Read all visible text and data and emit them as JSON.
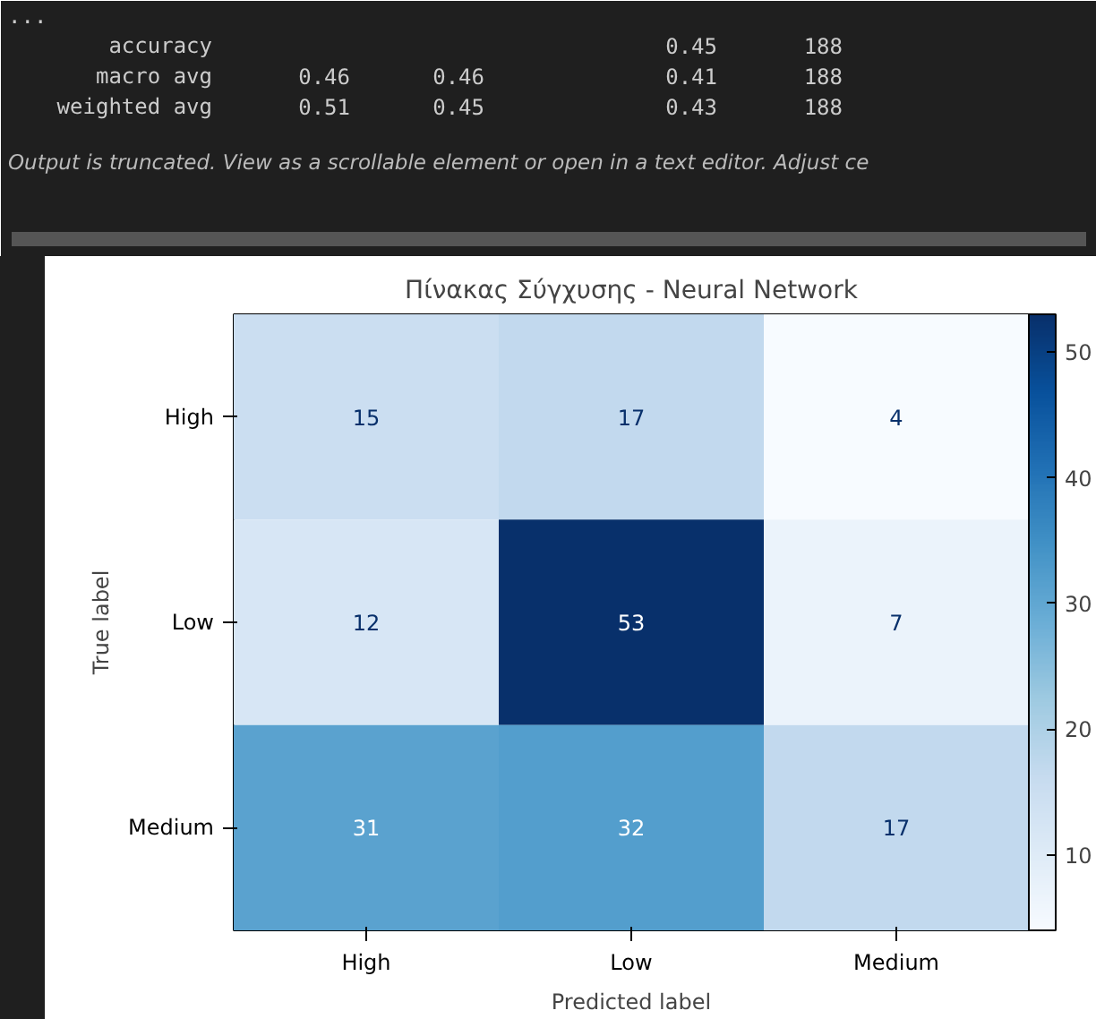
{
  "chart_data": {
    "type": "heatmap",
    "title": "Πίνακας Σύγχυσης - Neural Network",
    "xlabel": "Predicted label",
    "ylabel": "True label",
    "categories": [
      "High",
      "Low",
      "Medium"
    ],
    "y_categories": [
      "High",
      "Low",
      "Medium"
    ],
    "cells": [
      [
        15,
        17,
        4
      ],
      [
        12,
        53,
        7
      ],
      [
        31,
        32,
        17
      ]
    ],
    "data_labels": true,
    "clim": [
      4,
      53
    ],
    "cticks": [
      10,
      20,
      30,
      40,
      50
    ],
    "annotations": [
      "...",
      "accuracy  0.45  188",
      "macro avg  0.46  0.46  0.41  188",
      "weighted avg  0.51  0.45  0.43  188",
      "Output is truncated. View as a scrollable element or open in a text editor. Adjust ce"
    ]
  }
}
